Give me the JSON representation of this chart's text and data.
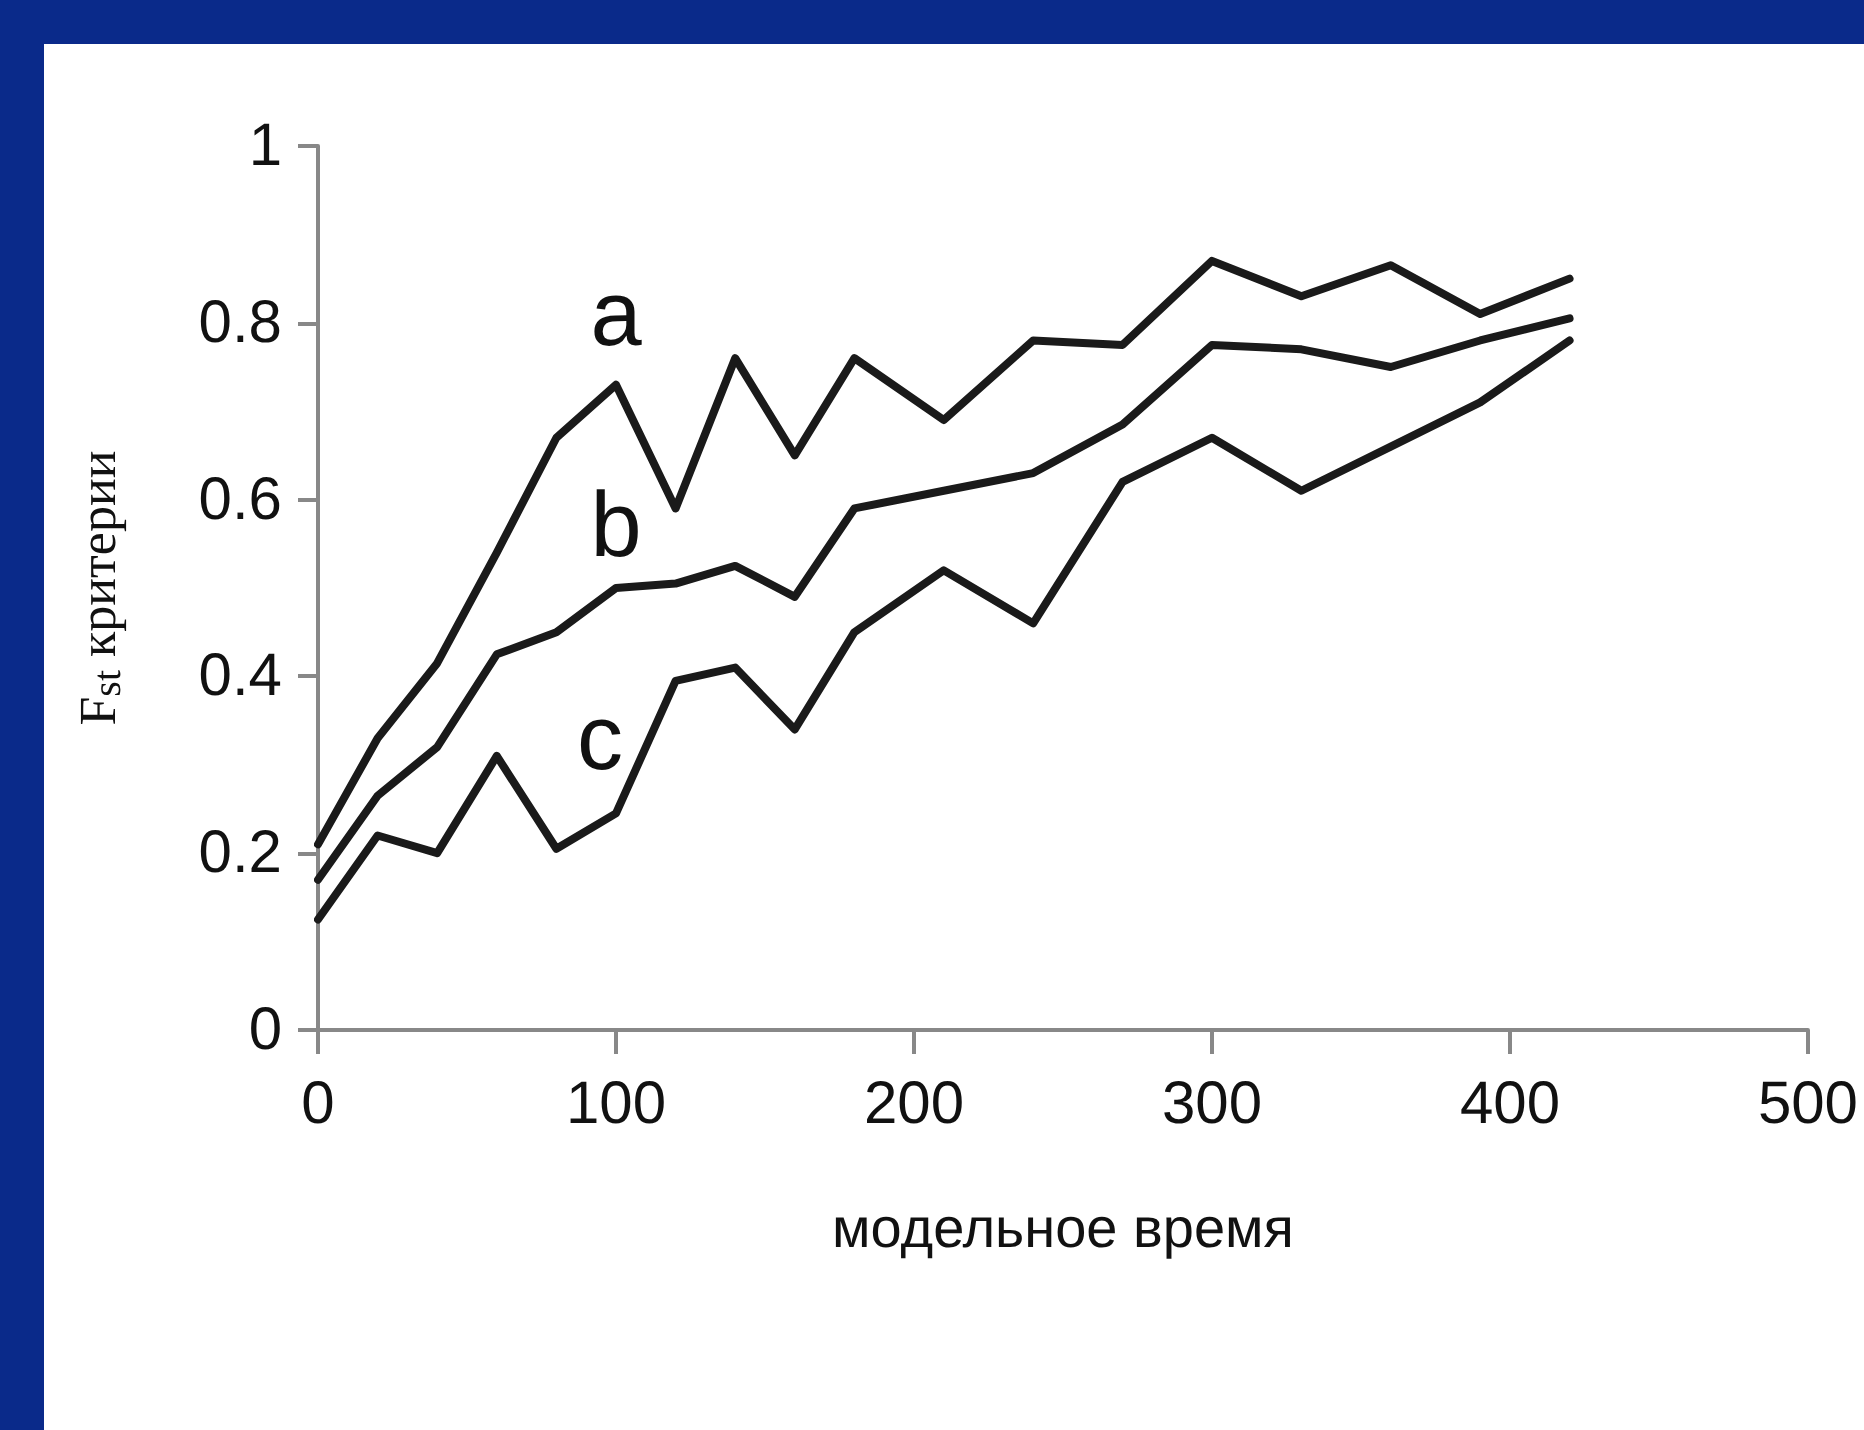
{
  "chart_data": {
    "type": "line",
    "xlabel": "модельное время",
    "ylabel": "F$_{st}$ критерии",
    "x": [
      0,
      20,
      40,
      60,
      80,
      100,
      120,
      140,
      160,
      180,
      210,
      240,
      270,
      300,
      330,
      360,
      390,
      420
    ],
    "series": [
      {
        "name": "a",
        "color": "#1a1a1a",
        "values": [
          0.21,
          0.33,
          0.415,
          0.54,
          0.67,
          0.73,
          0.59,
          0.76,
          0.65,
          0.76,
          0.69,
          0.78,
          0.775,
          0.87,
          0.83,
          0.865,
          0.81,
          0.85
        ]
      },
      {
        "name": "b",
        "color": "#1a1a1a",
        "values": [
          0.17,
          0.265,
          0.32,
          0.425,
          0.45,
          0.5,
          0.505,
          0.525,
          0.49,
          0.59,
          0.61,
          0.63,
          0.685,
          0.775,
          0.77,
          0.75,
          0.78,
          0.805
        ]
      },
      {
        "name": "c",
        "color": "#1a1a1a",
        "values": [
          0.125,
          0.22,
          0.2,
          0.31,
          0.205,
          0.245,
          0.395,
          0.41,
          0.34,
          0.45,
          0.52,
          0.46,
          0.62,
          0.67,
          0.61,
          0.66,
          0.71,
          0.78
        ]
      }
    ],
    "xlim": [
      0,
      500
    ],
    "xticks": [
      0,
      100,
      200,
      300,
      400,
      500
    ],
    "ylim": [
      0,
      1
    ],
    "yticks": [
      0,
      0.2,
      0.4,
      0.6,
      0.8,
      1
    ],
    "grid": false,
    "legend": false,
    "marker": "none",
    "line_style": "solid"
  }
}
